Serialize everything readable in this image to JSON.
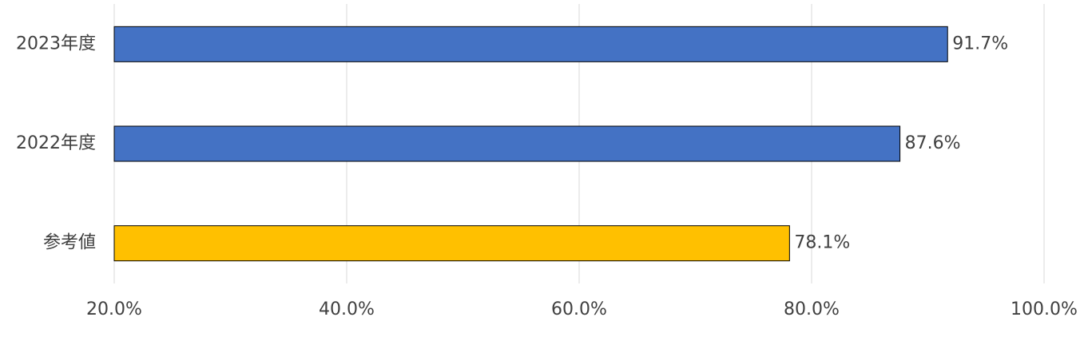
{
  "chart_data": {
    "type": "barh",
    "categories": [
      "2023年度",
      "2022年度",
      "参考値"
    ],
    "values": [
      91.7,
      87.6,
      78.1
    ],
    "value_labels": [
      "91.7%",
      "87.6%",
      "78.1%"
    ],
    "colors": [
      "#4472c4",
      "#4472c4",
      "#ffc000"
    ],
    "xlim": [
      20,
      100
    ],
    "xticks": [
      {
        "value": 20,
        "label": "20.0%"
      },
      {
        "value": 40,
        "label": "40.0%"
      },
      {
        "value": 60,
        "label": "60.0%"
      },
      {
        "value": 80,
        "label": "80.0%"
      },
      {
        "value": 100,
        "label": "100.0%"
      }
    ],
    "grid": true
  }
}
